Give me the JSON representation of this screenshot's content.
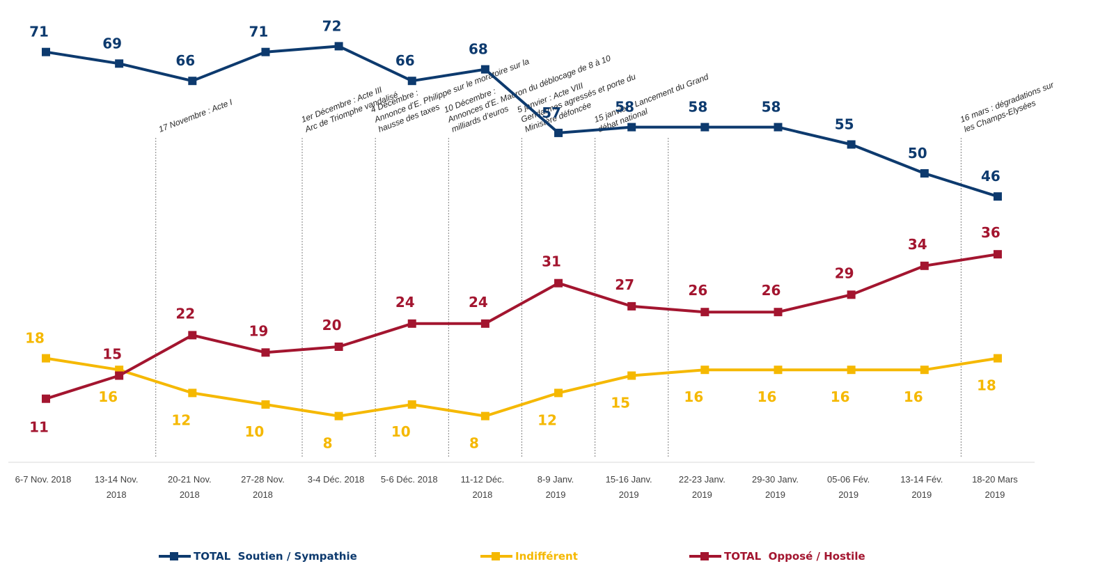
{
  "chart_data": {
    "type": "line",
    "categories": [
      [
        "6-7 Nov. 2018"
      ],
      [
        "13-14 Nov.",
        "2018"
      ],
      [
        "20-21 Nov.",
        "2018"
      ],
      [
        "27-28 Nov.",
        "2018"
      ],
      [
        "3-4 Déc. 2018"
      ],
      [
        "5-6 Déc. 2018"
      ],
      [
        "11-12 Déc.",
        "2018"
      ],
      [
        "8-9 Janv.",
        "2019"
      ],
      [
        "15-16 Janv.",
        "2019"
      ],
      [
        "22-23 Janv.",
        "2019"
      ],
      [
        "29-30 Janv.",
        "2019"
      ],
      [
        "05-06 Fév.",
        "2019"
      ],
      [
        "13-14 Fév.",
        "2019"
      ],
      [
        "18-20 Mars",
        "2019"
      ]
    ],
    "series": [
      {
        "name": "TOTAL  Soutien / Sympathie",
        "color": "#0d3a6e",
        "values": [
          71,
          69,
          66,
          71,
          72,
          66,
          68,
          57,
          58,
          58,
          58,
          55,
          50,
          46
        ]
      },
      {
        "name": "Indifférent",
        "color": "#f5b800",
        "values": [
          18,
          16,
          12,
          10,
          8,
          10,
          8,
          12,
          15,
          16,
          16,
          16,
          16,
          18
        ]
      },
      {
        "name": "TOTAL  Opposé / Hostile",
        "color": "#a3152f",
        "values": [
          11,
          15,
          22,
          19,
          20,
          24,
          24,
          31,
          27,
          26,
          26,
          29,
          34,
          36
        ]
      }
    ],
    "ylim": [
      0,
      80
    ],
    "grid": false,
    "legend_position": "bottom",
    "annotations": [
      {
        "after_index": 1,
        "lines": [
          "17 Novembre : Acte I"
        ]
      },
      {
        "after_index": 3,
        "lines": [
          "1er Décembre : Acte III",
          "Arc de Triomphe vandalisé"
        ]
      },
      {
        "after_index": 4,
        "lines": [
          "4 Décembre :",
          "Annonce d’E. Philippe sur le moratoire sur la",
          "hausse des taxes"
        ]
      },
      {
        "after_index": 5,
        "lines": [
          "10 Décembre :",
          "Annonces d’E. Macron du déblocage de 8 à 10",
          "milliards d’euros"
        ]
      },
      {
        "after_index": 6,
        "lines": [
          "5 janvier : Acte VIII",
          "Gendarmes agressés et porte du",
          "Ministère défoncée"
        ]
      },
      {
        "after_index": 7,
        "lines": [
          "15 janvier : Lancement du Grand",
          "débat national"
        ]
      },
      {
        "after_index": 8,
        "lines": []
      },
      {
        "after_index": 12,
        "lines": [
          "16 mars : dégradations sur",
          "les Champs-Elysées"
        ]
      }
    ]
  }
}
